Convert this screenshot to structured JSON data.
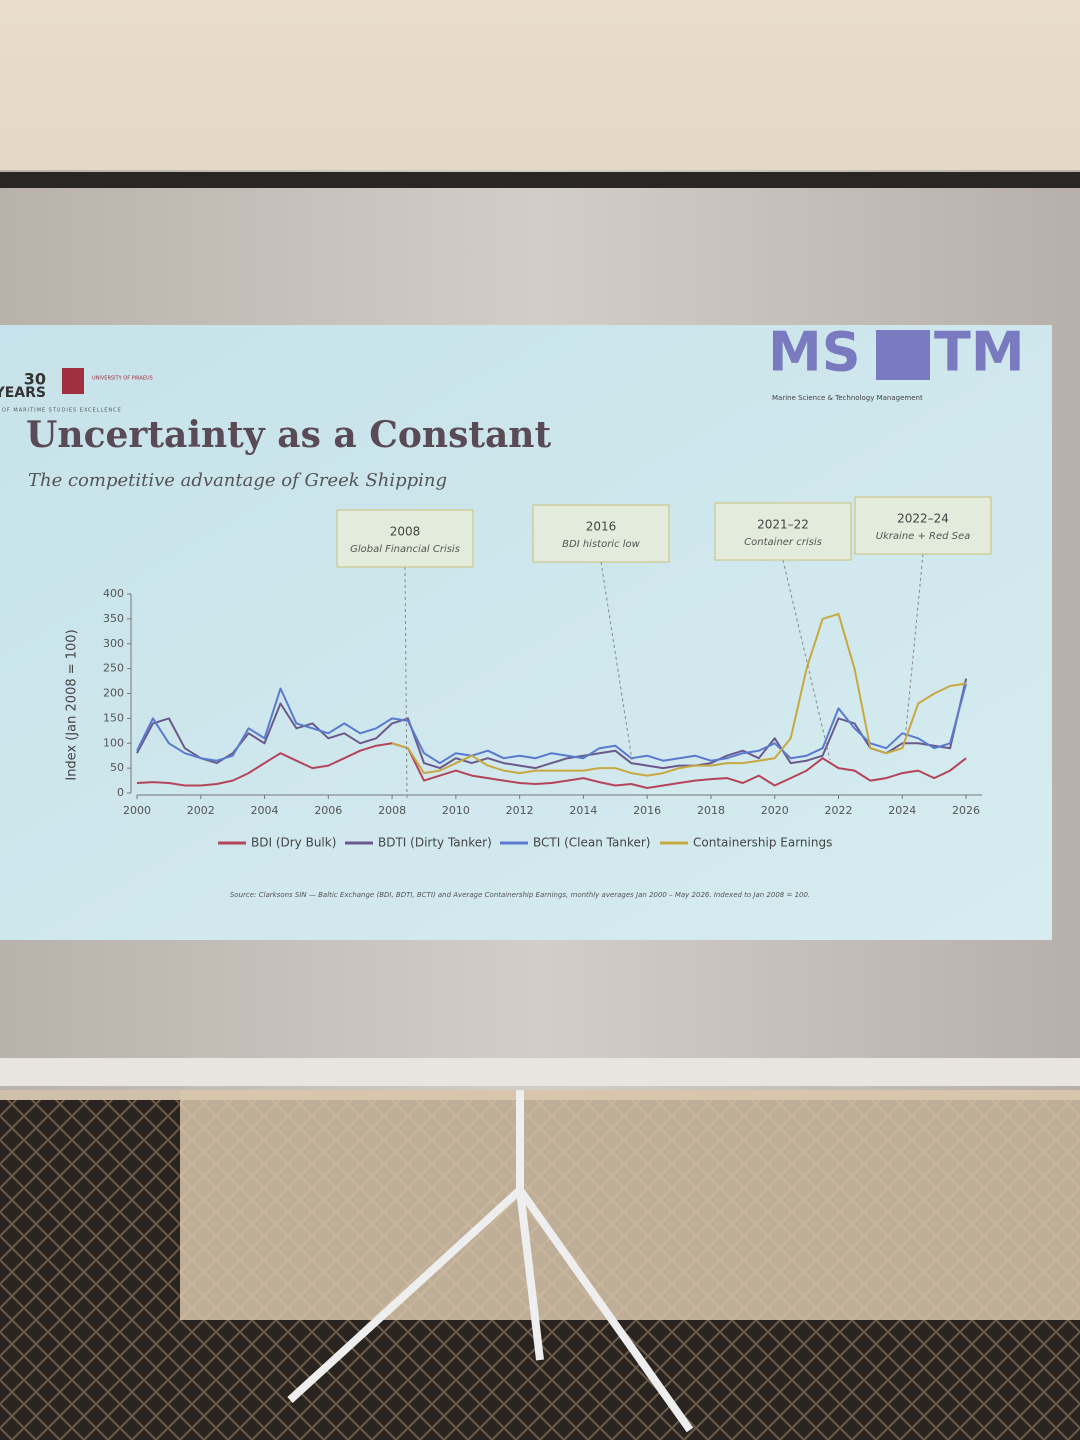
{
  "header": {
    "anniversary": "30",
    "anniversary_word": "YEARS",
    "university": "UNIVERSITY OF PIRAEUS",
    "tagline": "OF MARITIME STUDIES EXCELLENCE",
    "logo": "MS",
    "logo_right": "TM",
    "logo_caption": "Marine Science & Technology Management"
  },
  "chart_data": {
    "type": "line",
    "title": "Uncertainty as a Constant",
    "subtitle": "The competitive advantage of Greek Shipping",
    "y_label": "Index (Jan 2008 = 100)",
    "source": "Source: Clarksons SIN — Baltic Exchange (BDI, BDTI, BCTI) and Average Containership Earnings, monthly averages Jan 2000 – May 2026. Indexed to Jan 2008 = 100.",
    "annotations": [
      {
        "title": "2008",
        "text": "Global Financial Crisis"
      },
      {
        "title": "2016",
        "text": "BDI historic low"
      },
      {
        "title": "2021–22",
        "text": "Container crisis"
      },
      {
        "title": "2022–24",
        "text": "Ukraine + Red Sea"
      }
    ],
    "x": [
      2000,
      2000.5,
      2001,
      2001.5,
      2002,
      2002.5,
      2003,
      2003.5,
      2004,
      2004.5,
      2005,
      2005.5,
      2006,
      2006.5,
      2007,
      2007.5,
      2008,
      2008.5,
      2009,
      2009.5,
      2010,
      2010.5,
      2011,
      2011.5,
      2012,
      2012.5,
      2013,
      2013.5,
      2014,
      2014.5,
      2015,
      2015.5,
      2016,
      2016.5,
      2017,
      2017.5,
      2018,
      2018.5,
      2019,
      2019.5,
      2020,
      2020.5,
      2021,
      2021.5,
      2022,
      2022.5,
      2023,
      2023.5,
      2024,
      2024.5,
      2025,
      2025.5,
      2026
    ],
    "series": [
      {
        "name": "BDI (Dry Bulk)",
        "color": "#b5445a",
        "values": [
          20,
          22,
          20,
          15,
          15,
          18,
          25,
          40,
          60,
          80,
          65,
          50,
          55,
          70,
          85,
          95,
          100,
          90,
          25,
          35,
          45,
          35,
          30,
          25,
          20,
          18,
          20,
          25,
          30,
          22,
          15,
          18,
          10,
          15,
          20,
          25,
          28,
          30,
          20,
          35,
          15,
          30,
          45,
          70,
          50,
          45,
          25,
          30,
          40,
          45,
          30,
          45,
          70
        ]
      },
      {
        "name": "BDTI (Dirty Tanker)",
        "color": "#6a5a8c",
        "values": [
          80,
          140,
          150,
          90,
          70,
          60,
          80,
          120,
          100,
          180,
          130,
          140,
          110,
          120,
          100,
          110,
          140,
          150,
          60,
          50,
          70,
          60,
          70,
          60,
          55,
          50,
          60,
          70,
          75,
          80,
          85,
          60,
          55,
          50,
          55,
          55,
          60,
          75,
          85,
          70,
          110,
          60,
          65,
          75,
          150,
          140,
          90,
          80,
          100,
          100,
          95,
          90,
          230
        ]
      },
      {
        "name": "BCTI (Clean Tanker)",
        "color": "#5a7ad0",
        "values": [
          85,
          150,
          100,
          80,
          70,
          65,
          75,
          130,
          110,
          210,
          140,
          130,
          120,
          140,
          120,
          130,
          150,
          145,
          80,
          60,
          80,
          75,
          85,
          70,
          75,
          70,
          80,
          75,
          70,
          90,
          95,
          70,
          75,
          65,
          70,
          75,
          65,
          70,
          80,
          85,
          100,
          70,
          75,
          90,
          170,
          130,
          100,
          90,
          120,
          110,
          90,
          100,
          220
        ]
      },
      {
        "name": "Containership Earnings",
        "color": "#c8a840",
        "values": [
          null,
          null,
          null,
          null,
          null,
          null,
          null,
          null,
          null,
          null,
          null,
          null,
          null,
          null,
          null,
          null,
          100,
          90,
          40,
          45,
          60,
          75,
          55,
          45,
          40,
          45,
          45,
          45,
          45,
          50,
          50,
          40,
          35,
          40,
          50,
          55,
          55,
          60,
          60,
          65,
          70,
          110,
          250,
          350,
          360,
          250,
          90,
          80,
          90,
          180,
          200,
          215,
          220
        ]
      }
    ],
    "xlim": [
      2000,
      2026.5
    ],
    "xticks": [
      2000,
      2002,
      2004,
      2006,
      2008,
      2010,
      2012,
      2014,
      2016,
      2018,
      2020,
      2022,
      2024,
      2026
    ],
    "ylim": [
      0,
      400
    ],
    "yticks": [
      0,
      50,
      100,
      150,
      200,
      250,
      300,
      350,
      400
    ]
  }
}
